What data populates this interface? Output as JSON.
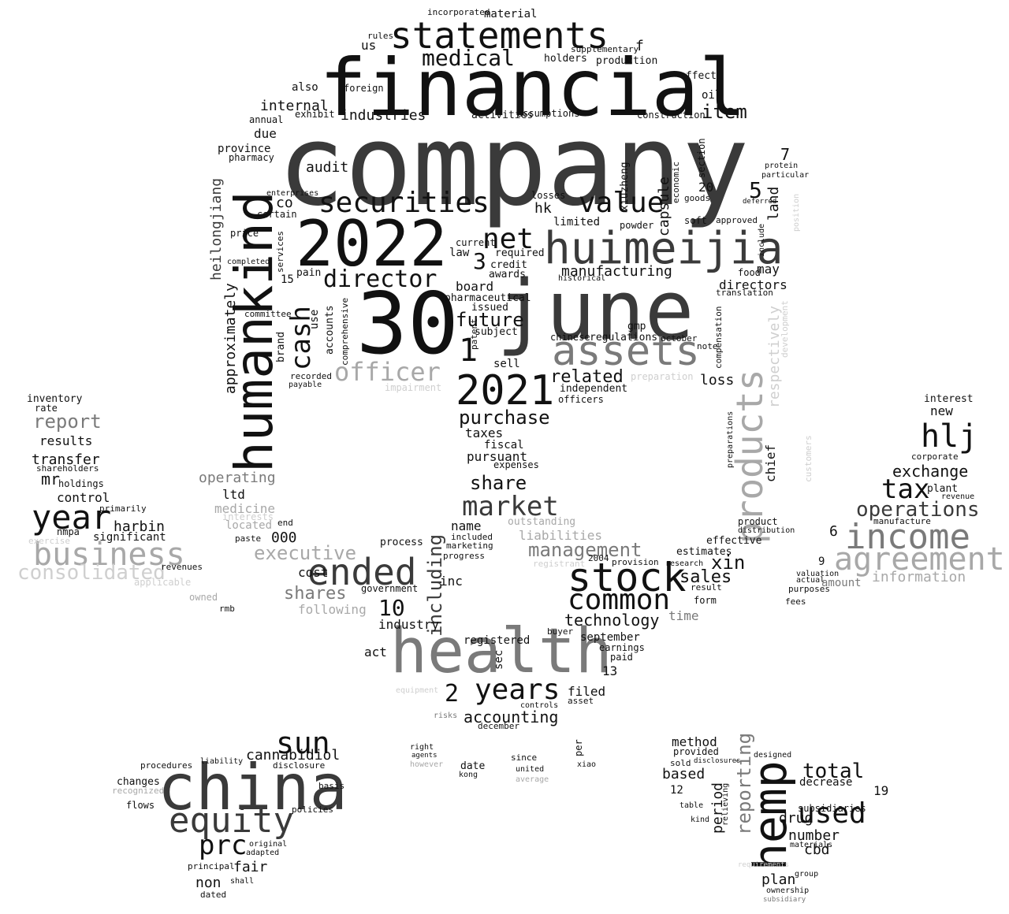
{
  "palette": {
    "dark": "#3a3a3a",
    "black": "#111111",
    "gray": "#7a7a7a",
    "light": "#a8a8a8",
    "faint": "#cfcfcf"
  },
  "words": [
    {
      "text": "company",
      "tone": "dark"
    },
    {
      "text": "financial",
      "tone": "black"
    },
    {
      "text": "30",
      "tone": "black"
    },
    {
      "text": "june",
      "tone": "dark"
    },
    {
      "text": "humankind",
      "tone": "black"
    },
    {
      "text": "2022",
      "tone": "black"
    },
    {
      "text": "huimeijia",
      "tone": "dark"
    },
    {
      "text": "statements",
      "tone": "black"
    },
    {
      "text": "health",
      "tone": "gray"
    },
    {
      "text": "china",
      "tone": "dark"
    },
    {
      "text": "hemp",
      "tone": "black"
    },
    {
      "text": "2021",
      "tone": "black"
    },
    {
      "text": "stock",
      "tone": "black"
    },
    {
      "text": "products",
      "tone": "light"
    },
    {
      "text": "assets",
      "tone": "gray"
    },
    {
      "text": "income",
      "tone": "gray"
    },
    {
      "text": "agreement",
      "tone": "light"
    },
    {
      "text": "business",
      "tone": "light"
    },
    {
      "text": "ended",
      "tone": "dark"
    },
    {
      "text": "year",
      "tone": "black"
    },
    {
      "text": "equity",
      "tone": "dark"
    },
    {
      "text": "securities",
      "tone": "black"
    },
    {
      "text": "common",
      "tone": "black"
    },
    {
      "text": "net",
      "tone": "black"
    },
    {
      "text": "value",
      "tone": "black"
    },
    {
      "text": "years",
      "tone": "black"
    },
    {
      "text": "market",
      "tone": "dark"
    },
    {
      "text": "sun",
      "tone": "black"
    },
    {
      "text": "used",
      "tone": "black"
    },
    {
      "text": "cash",
      "tone": "black"
    },
    {
      "text": "director",
      "tone": "black"
    },
    {
      "text": "officer",
      "tone": "light"
    },
    {
      "text": "medical",
      "tone": "black"
    },
    {
      "text": "hlj",
      "tone": "black"
    },
    {
      "text": "tax",
      "tone": "black"
    },
    {
      "text": "consolidated",
      "tone": "faint"
    },
    {
      "text": "prc",
      "tone": "black"
    },
    {
      "text": "operations",
      "tone": "dark"
    },
    {
      "text": "executive",
      "tone": "light"
    },
    {
      "text": "report",
      "tone": "gray"
    },
    {
      "text": "management",
      "tone": "gray"
    },
    {
      "text": "including",
      "tone": "dark"
    },
    {
      "text": "reporting",
      "tone": "gray"
    },
    {
      "text": "item",
      "tone": "black"
    },
    {
      "text": "total",
      "tone": "black"
    },
    {
      "text": "future",
      "tone": "black"
    },
    {
      "text": "purchase",
      "tone": "black"
    },
    {
      "text": "share",
      "tone": "black"
    },
    {
      "text": "shares",
      "tone": "gray"
    },
    {
      "text": "cannabidiol",
      "tone": "black"
    },
    {
      "text": "audit",
      "tone": "black"
    },
    {
      "text": "approximately",
      "tone": "black"
    },
    {
      "text": "heilongjiang",
      "tone": "dark"
    },
    {
      "text": "information",
      "tone": "light"
    },
    {
      "text": "related",
      "tone": "black"
    },
    {
      "text": "technology",
      "tone": "black"
    },
    {
      "text": "accounting",
      "tone": "black"
    },
    {
      "text": "period",
      "tone": "black"
    },
    {
      "text": "exchange",
      "tone": "black"
    },
    {
      "text": "respectively",
      "tone": "faint"
    },
    {
      "text": "manufacturing",
      "tone": "black"
    },
    {
      "text": "internal",
      "tone": "black"
    },
    {
      "text": "industries",
      "tone": "black"
    },
    {
      "text": "xin",
      "tone": "black"
    },
    {
      "text": "sales",
      "tone": "black"
    },
    {
      "text": "capsule",
      "tone": "black"
    },
    {
      "text": "control",
      "tone": "black"
    },
    {
      "text": "transfer",
      "tone": "black"
    },
    {
      "text": "results",
      "tone": "black"
    },
    {
      "text": "harbin",
      "tone": "black"
    },
    {
      "text": "significant",
      "tone": "black"
    },
    {
      "text": "fair",
      "tone": "black"
    },
    {
      "text": "non",
      "tone": "black"
    },
    {
      "text": "method",
      "tone": "black"
    },
    {
      "text": "based",
      "tone": "black"
    },
    {
      "text": "number",
      "tone": "black"
    },
    {
      "text": "drug",
      "tone": "black"
    },
    {
      "text": "cbd",
      "tone": "black"
    },
    {
      "text": "plan",
      "tone": "black"
    },
    {
      "text": "decrease",
      "tone": "black"
    },
    {
      "text": "subsidiaries",
      "tone": "black"
    },
    {
      "text": "chief",
      "tone": "black"
    },
    {
      "text": "loss",
      "tone": "black"
    },
    {
      "text": "land",
      "tone": "black"
    },
    {
      "text": "directors",
      "tone": "black"
    },
    {
      "text": "may",
      "tone": "black"
    },
    {
      "text": "operating",
      "tone": "gray"
    },
    {
      "text": "medicine",
      "tone": "light"
    },
    {
      "text": "following",
      "tone": "light"
    },
    {
      "text": "act",
      "tone": "black"
    },
    {
      "text": "registered",
      "tone": "black"
    },
    {
      "text": "industry",
      "tone": "black"
    },
    {
      "text": "september",
      "tone": "black"
    },
    {
      "text": "earnings",
      "tone": "black"
    },
    {
      "text": "filed",
      "tone": "black"
    },
    {
      "text": "pursuant",
      "tone": "black"
    },
    {
      "text": "taxes",
      "tone": "black"
    },
    {
      "text": "fiscal",
      "tone": "black"
    },
    {
      "text": "expenses",
      "tone": "black"
    },
    {
      "text": "board",
      "tone": "black"
    },
    {
      "text": "pharmaceutical",
      "tone": "black"
    },
    {
      "text": "issued",
      "tone": "black"
    },
    {
      "text": "subject",
      "tone": "black"
    },
    {
      "text": "sell",
      "tone": "black"
    },
    {
      "text": "credit",
      "tone": "black"
    },
    {
      "text": "awards",
      "tone": "black"
    },
    {
      "text": "law",
      "tone": "black"
    },
    {
      "text": "limited",
      "tone": "black"
    },
    {
      "text": "required",
      "tone": "black"
    },
    {
      "text": "powder",
      "tone": "black"
    },
    {
      "text": "regulations",
      "tone": "black"
    },
    {
      "text": "gmp",
      "tone": "black"
    },
    {
      "text": "independent",
      "tone": "black"
    },
    {
      "text": "officers",
      "tone": "black"
    },
    {
      "text": "production",
      "tone": "black"
    },
    {
      "text": "holders",
      "tone": "black"
    },
    {
      "text": "supplementary",
      "tone": "black"
    },
    {
      "text": "effect",
      "tone": "black"
    },
    {
      "text": "oil",
      "tone": "black"
    },
    {
      "text": "construction",
      "tone": "black"
    },
    {
      "text": "assumptions",
      "tone": "black"
    },
    {
      "text": "activities",
      "tone": "black"
    },
    {
      "text": "material",
      "tone": "black"
    },
    {
      "text": "incorporated",
      "tone": "black"
    },
    {
      "text": "rules",
      "tone": "black"
    },
    {
      "text": "us",
      "tone": "black"
    },
    {
      "text": "also",
      "tone": "black"
    },
    {
      "text": "foreign",
      "tone": "black"
    },
    {
      "text": "annual",
      "tone": "black"
    },
    {
      "text": "exhibit",
      "tone": "black"
    },
    {
      "text": "due",
      "tone": "black"
    },
    {
      "text": "province",
      "tone": "black"
    },
    {
      "text": "pharmacy",
      "tone": "black"
    },
    {
      "text": "co",
      "tone": "black"
    },
    {
      "text": "enterprises",
      "tone": "black"
    },
    {
      "text": "certain",
      "tone": "black"
    },
    {
      "text": "price",
      "tone": "black"
    },
    {
      "text": "completed",
      "tone": "black"
    },
    {
      "text": "services",
      "tone": "black"
    },
    {
      "text": "committee",
      "tone": "black"
    },
    {
      "text": "brand",
      "tone": "black"
    },
    {
      "text": "use",
      "tone": "black"
    },
    {
      "text": "accounts",
      "tone": "black"
    },
    {
      "text": "comprehensive",
      "tone": "black"
    },
    {
      "text": "pain",
      "tone": "black"
    },
    {
      "text": "recorded",
      "tone": "black"
    },
    {
      "text": "payable",
      "tone": "black"
    },
    {
      "text": "impairment",
      "tone": "faint"
    },
    {
      "text": "ltd",
      "tone": "black"
    },
    {
      "text": "located",
      "tone": "light"
    },
    {
      "text": "interests",
      "tone": "faint"
    },
    {
      "text": "paste",
      "tone": "black"
    },
    {
      "text": "end",
      "tone": "black"
    },
    {
      "text": "cost",
      "tone": "black"
    },
    {
      "text": "000",
      "tone": "black"
    },
    {
      "text": "name",
      "tone": "black"
    },
    {
      "text": "included",
      "tone": "black"
    },
    {
      "text": "marketing",
      "tone": "black"
    },
    {
      "text": "progress",
      "tone": "black"
    },
    {
      "text": "process",
      "tone": "black"
    },
    {
      "text": "inc",
      "tone": "black"
    },
    {
      "text": "government",
      "tone": "black"
    },
    {
      "text": "outstanding",
      "tone": "light"
    },
    {
      "text": "liabilities",
      "tone": "light"
    },
    {
      "text": "registrant",
      "tone": "faint"
    },
    {
      "text": "estimates",
      "tone": "black"
    },
    {
      "text": "effective",
      "tone": "black"
    },
    {
      "text": "provision",
      "tone": "black"
    },
    {
      "text": "research",
      "tone": "black"
    },
    {
      "text": "result",
      "tone": "black"
    },
    {
      "text": "form",
      "tone": "black"
    },
    {
      "text": "time",
      "tone": "gray"
    },
    {
      "text": "buyer",
      "tone": "black"
    },
    {
      "text": "paid",
      "tone": "black"
    },
    {
      "text": "asset",
      "tone": "black"
    },
    {
      "text": "controls",
      "tone": "black"
    },
    {
      "text": "december",
      "tone": "black"
    },
    {
      "text": "equipment",
      "tone": "faint"
    },
    {
      "text": "sec",
      "tone": "black"
    },
    {
      "text": "risks",
      "tone": "gray"
    },
    {
      "text": "inventory",
      "tone": "black"
    },
    {
      "text": "rate",
      "tone": "black"
    },
    {
      "text": "mr",
      "tone": "black"
    },
    {
      "text": "shareholders",
      "tone": "black"
    },
    {
      "text": "holdings",
      "tone": "black"
    },
    {
      "text": "primarily",
      "tone": "black"
    },
    {
      "text": "nmpa",
      "tone": "black"
    },
    {
      "text": "exercise",
      "tone": "faint"
    },
    {
      "text": "revenues",
      "tone": "black"
    },
    {
      "text": "applicable",
      "tone": "faint"
    },
    {
      "text": "owned",
      "tone": "light"
    },
    {
      "text": "rmb",
      "tone": "black"
    },
    {
      "text": "new",
      "tone": "black"
    },
    {
      "text": "interest",
      "tone": "black"
    },
    {
      "text": "corporate",
      "tone": "black"
    },
    {
      "text": "plant",
      "tone": "black"
    },
    {
      "text": "revenue",
      "tone": "black"
    },
    {
      "text": "manufacture",
      "tone": "black"
    },
    {
      "text": "amount",
      "tone": "gray"
    },
    {
      "text": "valuation",
      "tone": "black"
    },
    {
      "text": "purposes",
      "tone": "black"
    },
    {
      "text": "actual",
      "tone": "black"
    },
    {
      "text": "fees",
      "tone": "black"
    },
    {
      "text": "procedures",
      "tone": "black"
    },
    {
      "text": "changes",
      "tone": "black"
    },
    {
      "text": "recognized",
      "tone": "light"
    },
    {
      "text": "flows",
      "tone": "black"
    },
    {
      "text": "disclosure",
      "tone": "black"
    },
    {
      "text": "policies",
      "tone": "black"
    },
    {
      "text": "original",
      "tone": "black"
    },
    {
      "text": "adapted",
      "tone": "black"
    },
    {
      "text": "principal",
      "tone": "black"
    },
    {
      "text": "dated",
      "tone": "black"
    },
    {
      "text": "shall",
      "tone": "black"
    },
    {
      "text": "liability",
      "tone": "black"
    },
    {
      "text": "basis",
      "tone": "black"
    },
    {
      "text": "date",
      "tone": "black"
    },
    {
      "text": "kong",
      "tone": "black"
    },
    {
      "text": "since",
      "tone": "black"
    },
    {
      "text": "united",
      "tone": "black"
    },
    {
      "text": "average",
      "tone": "light"
    },
    {
      "text": "right",
      "tone": "black"
    },
    {
      "text": "agents",
      "tone": "black"
    },
    {
      "text": "however",
      "tone": "light"
    },
    {
      "text": "per",
      "tone": "black"
    },
    {
      "text": "xiao",
      "tone": "black"
    },
    {
      "text": "provided",
      "tone": "black"
    },
    {
      "text": "sold",
      "tone": "black"
    },
    {
      "text": "disclosures",
      "tone": "black"
    },
    {
      "text": "designed",
      "tone": "black"
    },
    {
      "text": "table",
      "tone": "black"
    },
    {
      "text": "kind",
      "tone": "black"
    },
    {
      "text": "relieving",
      "tone": "black"
    },
    {
      "text": "ownership",
      "tone": "black"
    },
    {
      "text": "subsidiary",
      "tone": "gray"
    },
    {
      "text": "materials",
      "tone": "black"
    },
    {
      "text": "group",
      "tone": "black"
    },
    {
      "text": "requirements",
      "tone": "faint"
    },
    {
      "text": "1",
      "tone": "black"
    },
    {
      "text": "2",
      "tone": "black"
    },
    {
      "text": "3",
      "tone": "black"
    },
    {
      "text": "5",
      "tone": "black"
    },
    {
      "text": "6",
      "tone": "black"
    },
    {
      "text": "7",
      "tone": "black"
    },
    {
      "text": "9",
      "tone": "black"
    },
    {
      "text": "10",
      "tone": "black"
    },
    {
      "text": "12",
      "tone": "black"
    },
    {
      "text": "13",
      "tone": "black"
    },
    {
      "text": "15",
      "tone": "black"
    },
    {
      "text": "19",
      "tone": "black"
    },
    {
      "text": "20",
      "tone": "black"
    },
    {
      "text": "2004",
      "tone": "black"
    },
    {
      "text": "f",
      "tone": "black"
    },
    {
      "text": "hk",
      "tone": "black"
    },
    {
      "text": "xiuzheng",
      "tone": "black"
    },
    {
      "text": "economic",
      "tone": "black"
    },
    {
      "text": "section",
      "tone": "black"
    },
    {
      "text": "compensation",
      "tone": "black"
    },
    {
      "text": "translation",
      "tone": "black"
    },
    {
      "text": "food",
      "tone": "black"
    },
    {
      "text": "preparations",
      "tone": "black"
    },
    {
      "text": "customers",
      "tone": "faint"
    },
    {
      "text": "development",
      "tone": "faint"
    },
    {
      "text": "position",
      "tone": "faint"
    },
    {
      "text": "approved",
      "tone": "black"
    },
    {
      "text": "soft",
      "tone": "black"
    },
    {
      "text": "deferred",
      "tone": "black"
    },
    {
      "text": "include",
      "tone": "black"
    },
    {
      "text": "protein",
      "tone": "black"
    },
    {
      "text": "particular",
      "tone": "black"
    },
    {
      "text": "goods",
      "tone": "black"
    },
    {
      "text": "losses",
      "tone": "black"
    },
    {
      "text": "current",
      "tone": "black"
    },
    {
      "text": "chinese",
      "tone": "black"
    },
    {
      "text": "patent",
      "tone": "black"
    },
    {
      "text": "historical",
      "tone": "black"
    },
    {
      "text": "october",
      "tone": "black"
    },
    {
      "text": "note",
      "tone": "black"
    },
    {
      "text": "product",
      "tone": "black"
    },
    {
      "text": "distribution",
      "tone": "black"
    },
    {
      "text": "preparation",
      "tone": "faint"
    }
  ]
}
